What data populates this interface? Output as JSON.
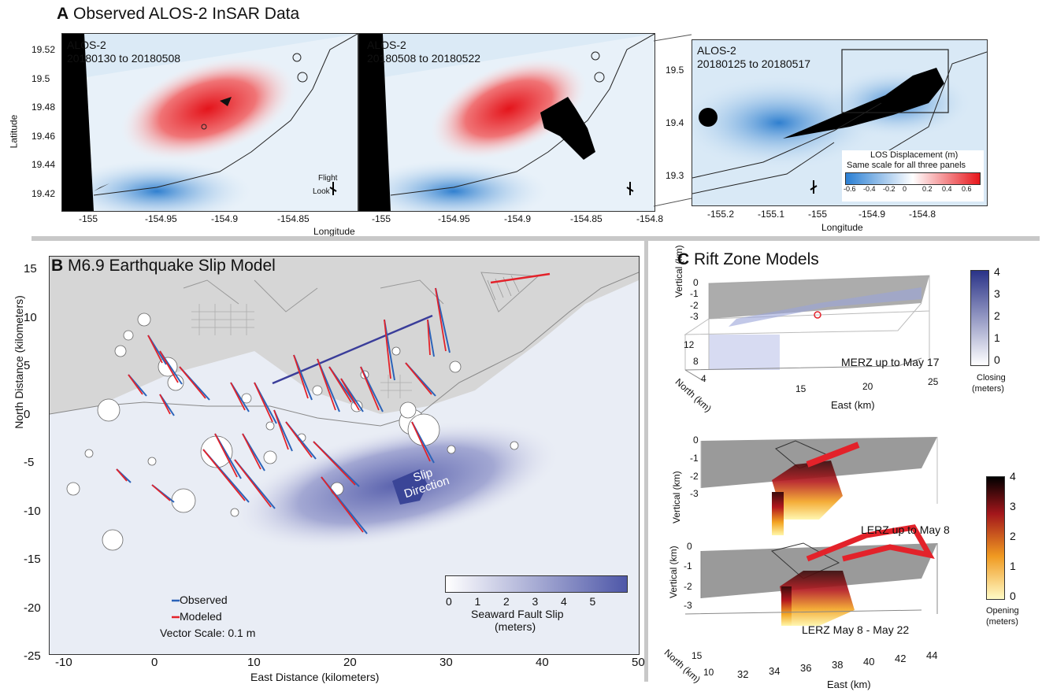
{
  "panel_a": {
    "title_letter": "A",
    "title_text": "Observed ALOS-2 InSAR Data",
    "ylabel": "Latitude",
    "xlabel": "Longitude",
    "xlabel_right": "Longitude",
    "yticks_left": [
      "19.52",
      "19.5",
      "19.48",
      "19.46",
      "19.44",
      "19.42"
    ],
    "xticks_1": [
      "-155",
      "-154.95",
      "-154.9",
      "-154.85"
    ],
    "xticks_2": [
      "-155",
      "-154.95",
      "-154.9",
      "-154.85",
      "-154.8"
    ],
    "yticks_right": [
      "19.5",
      "19.4",
      "19.3"
    ],
    "xticks_3": [
      "-155.2",
      "-155.1",
      "-155",
      "-154.9",
      "-154.8"
    ],
    "map1": {
      "line1": "ALOS-2",
      "line2": "20180130 to 20180508",
      "flight": "Flight",
      "look": "Look"
    },
    "map2": {
      "line1": "ALOS-2",
      "line2": "20180508 to 20180522"
    },
    "map3": {
      "line1": "ALOS-2",
      "line2": "20180125 to 20180517"
    },
    "colorbar": {
      "title1": "LOS Displacement (m)",
      "title2": "Same scale for all three panels",
      "ticks": [
        "-0.6",
        "-0.4",
        "-0.2",
        "0",
        "0.2",
        "0.4",
        "0.6"
      ],
      "colors": {
        "negative": "#2a7fd4",
        "zero": "#ffffff",
        "positive": "#e8161b"
      }
    }
  },
  "panel_b": {
    "title_letter": "B",
    "title_text": "M6.9 Earthquake Slip Model",
    "ylabel": "North Distance (kilometers)",
    "xlabel": "East Distance (kilometers)",
    "yticks": [
      "15",
      "10",
      "5",
      "0",
      "-5",
      "-10",
      "-15",
      "-20",
      "-25"
    ],
    "xticks": [
      "-10",
      "0",
      "10",
      "20",
      "30",
      "40",
      "50"
    ],
    "slip_label1": "Slip",
    "slip_label2": "Direction",
    "legend": {
      "observed": "Observed",
      "modeled": "Modeled",
      "scale": "Vector Scale: 0.1 m",
      "observed_color": "#2c63b8",
      "modeled_color": "#e3222a"
    },
    "colorbar": {
      "ticks": [
        "0",
        "1",
        "2",
        "3",
        "4",
        "5"
      ],
      "title1": "Seaward Fault Slip",
      "title2": "(meters)",
      "color_max": "#4e57a8"
    }
  },
  "panel_c": {
    "title_letter": "C",
    "title_text": "Rift Zone Models",
    "merz": {
      "label": "MERZ up to May 17",
      "zticks": [
        "0",
        "-1",
        "-2",
        "-3"
      ],
      "yticks": [
        "12",
        "8",
        "4"
      ],
      "xticks": [
        "15",
        "20",
        "25"
      ],
      "zlabel": "Vertical (km)",
      "ylabel": "North (km)",
      "xlabel": "East (km)"
    },
    "closing_bar": {
      "ticks": [
        "4",
        "3",
        "2",
        "1",
        "0"
      ],
      "title1": "Closing",
      "title2": "(meters)"
    },
    "lerz1": {
      "label": "LERZ up to May 8",
      "zticks": [
        "0",
        "-1",
        "-2",
        "-3"
      ],
      "zlabel": "Vertical (km)"
    },
    "lerz2": {
      "label": "LERZ May 8 - May 22",
      "zticks": [
        "0",
        "-1",
        "-2",
        "-3"
      ],
      "yticks": [
        "15",
        "10"
      ],
      "xticks": [
        "32",
        "34",
        "36",
        "38",
        "40",
        "42",
        "44"
      ],
      "zlabel": "Vertical (km)",
      "ylabel": "North (km)",
      "xlabel": "East (km)"
    },
    "opening_bar": {
      "ticks": [
        "4",
        "3",
        "2",
        "1",
        "0"
      ],
      "title1": "Opening",
      "title2": "(meters)"
    }
  }
}
